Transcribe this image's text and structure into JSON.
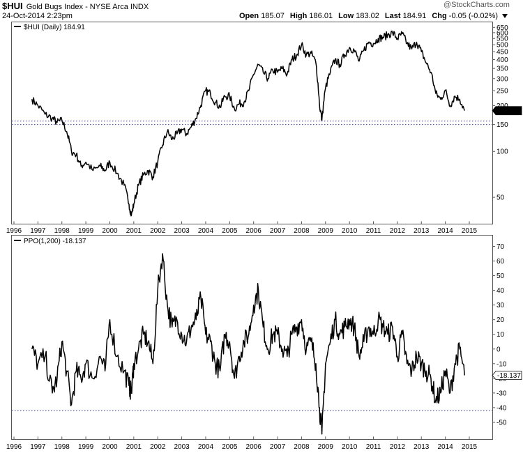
{
  "header": {
    "symbol": "$HUI",
    "name": "Gold Bugs Index - NYSE Arca INDX",
    "timestamp": "24-Oct-2014 2:23pm",
    "open_label": "Open",
    "open_value": "185.07",
    "high_label": "High",
    "high_value": "186.01",
    "low_label": "Low",
    "low_value": "183.02",
    "last_label": "Last",
    "last_value": "184.91",
    "chg_label": "Chg",
    "chg_value": "-0.05 (-0.02%)",
    "watermark": "@StockCharts.com"
  },
  "colors": {
    "line": "#000000",
    "dotted_line": "#3030c0",
    "border": "#555555",
    "last_label_bg": "#000000",
    "last_label_text": "#ffffff"
  },
  "chart_data": [
    {
      "type": "line",
      "title": "$HUI (Daily) 184.91",
      "series": [
        {
          "name": "$HUI (Daily)",
          "x": [
            1996.75,
            1997.0,
            1997.3,
            1997.6,
            1997.8,
            1998.0,
            1998.2,
            1998.4,
            1998.6,
            1998.8,
            1999.0,
            1999.3,
            1999.6,
            1999.8,
            2000.0,
            2000.3,
            2000.6,
            2000.8,
            2000.9,
            2001.0,
            2001.2,
            2001.4,
            2001.6,
            2001.8,
            2002.0,
            2002.2,
            2002.4,
            2002.6,
            2002.8,
            2003.0,
            2003.2,
            2003.4,
            2003.6,
            2003.8,
            2004.0,
            2004.2,
            2004.4,
            2004.6,
            2004.8,
            2005.0,
            2005.2,
            2005.4,
            2005.6,
            2005.8,
            2006.0,
            2006.2,
            2006.4,
            2006.6,
            2006.8,
            2007.0,
            2007.2,
            2007.4,
            2007.6,
            2007.8,
            2008.0,
            2008.2,
            2008.4,
            2008.6,
            2008.75,
            2008.85,
            2009.0,
            2009.2,
            2009.4,
            2009.6,
            2009.8,
            2010.0,
            2010.2,
            2010.4,
            2010.6,
            2010.8,
            2011.0,
            2011.2,
            2011.4,
            2011.6,
            2011.8,
            2012.0,
            2012.2,
            2012.4,
            2012.6,
            2012.8,
            2013.0,
            2013.2,
            2013.4,
            2013.6,
            2013.8,
            2014.0,
            2014.2,
            2014.4,
            2014.6,
            2014.8
          ],
          "values": [
            220,
            200,
            175,
            165,
            155,
            160,
            135,
            100,
            95,
            80,
            85,
            75,
            80,
            75,
            85,
            72,
            60,
            45,
            38,
            45,
            60,
            70,
            75,
            68,
            85,
            110,
            135,
            120,
            130,
            140,
            130,
            145,
            165,
            200,
            250,
            240,
            210,
            195,
            230,
            230,
            190,
            205,
            210,
            250,
            320,
            370,
            330,
            300,
            340,
            330,
            350,
            320,
            400,
            430,
            500,
            430,
            440,
            380,
            200,
            160,
            260,
            330,
            400,
            370,
            430,
            480,
            460,
            390,
            460,
            520,
            510,
            550,
            560,
            580,
            600,
            550,
            590,
            510,
            470,
            520,
            450,
            380,
            330,
            240,
            220,
            250,
            200,
            230,
            220,
            185
          ]
        }
      ],
      "x_ticks": [
        "1996",
        "1997",
        "1998",
        "1999",
        "2000",
        "2001",
        "2002",
        "2003",
        "2004",
        "2005",
        "2006",
        "2007",
        "2008",
        "2009",
        "2010",
        "2011",
        "2012",
        "2013",
        "2014",
        "2015"
      ],
      "y_ticks": [
        "650",
        "600",
        "550",
        "500",
        "450",
        "400",
        "350",
        "300",
        "250",
        "200",
        "150",
        "100",
        "50"
      ],
      "y_scale": "log",
      "ylim": [
        35,
        680
      ],
      "reference_line": 158,
      "reference_line_2": 150,
      "last_value_label": "184.91",
      "grid": false,
      "legend_placement": "top-left"
    },
    {
      "type": "line",
      "title": "PPO(1,200) -18.137",
      "series": [
        {
          "name": "PPO(1,200)",
          "x": [
            1996.75,
            1997.0,
            1997.3,
            1997.6,
            1997.8,
            1998.0,
            1998.2,
            1998.4,
            1998.6,
            1998.8,
            1999.0,
            1999.3,
            1999.6,
            1999.8,
            2000.0,
            2000.3,
            2000.6,
            2000.8,
            2000.9,
            2001.0,
            2001.2,
            2001.4,
            2001.6,
            2001.8,
            2002.0,
            2002.2,
            2002.4,
            2002.6,
            2002.8,
            2003.0,
            2003.2,
            2003.4,
            2003.6,
            2003.8,
            2004.0,
            2004.2,
            2004.4,
            2004.6,
            2004.8,
            2005.0,
            2005.2,
            2005.4,
            2005.6,
            2005.8,
            2006.0,
            2006.2,
            2006.4,
            2006.6,
            2006.8,
            2007.0,
            2007.2,
            2007.4,
            2007.6,
            2007.8,
            2008.0,
            2008.2,
            2008.4,
            2008.6,
            2008.75,
            2008.85,
            2009.0,
            2009.2,
            2009.4,
            2009.6,
            2009.8,
            2010.0,
            2010.2,
            2010.4,
            2010.6,
            2010.8,
            2011.0,
            2011.2,
            2011.4,
            2011.6,
            2011.8,
            2012.0,
            2012.2,
            2012.4,
            2012.6,
            2012.8,
            2013.0,
            2013.2,
            2013.4,
            2013.6,
            2013.8,
            2014.0,
            2014.2,
            2014.4,
            2014.6,
            2014.8
          ],
          "values": [
            0,
            -10,
            -5,
            -30,
            -20,
            5,
            -15,
            -38,
            -15,
            -20,
            -10,
            -20,
            -5,
            -15,
            20,
            -5,
            -15,
            -25,
            -30,
            -10,
            0,
            10,
            5,
            -10,
            40,
            65,
            30,
            15,
            20,
            10,
            5,
            15,
            20,
            35,
            10,
            5,
            -10,
            -15,
            10,
            5,
            -20,
            -5,
            5,
            10,
            30,
            40,
            15,
            0,
            10,
            10,
            0,
            -5,
            10,
            15,
            20,
            0,
            5,
            -10,
            -40,
            -58,
            -10,
            5,
            20,
            10,
            15,
            20,
            15,
            -5,
            5,
            15,
            10,
            20,
            15,
            10,
            15,
            -5,
            10,
            -10,
            -15,
            -5,
            -10,
            -15,
            -20,
            -35,
            -30,
            -15,
            -30,
            -10,
            0,
            -18
          ]
        }
      ],
      "x_ticks": [
        "1996",
        "1997",
        "1998",
        "1999",
        "2000",
        "2001",
        "2002",
        "2003",
        "2004",
        "2005",
        "2006",
        "2007",
        "2008",
        "2009",
        "2010",
        "2011",
        "2012",
        "2013",
        "2014",
        "2015"
      ],
      "y_ticks": [
        "70",
        "60",
        "50",
        "40",
        "30",
        "20",
        "10",
        "0",
        "-10",
        "-20",
        "-30",
        "-40",
        "-50"
      ],
      "ylim": [
        -60,
        75
      ],
      "reference_line": -42,
      "last_value_label": "-18.137",
      "grid": false,
      "legend_placement": "top-left"
    }
  ]
}
